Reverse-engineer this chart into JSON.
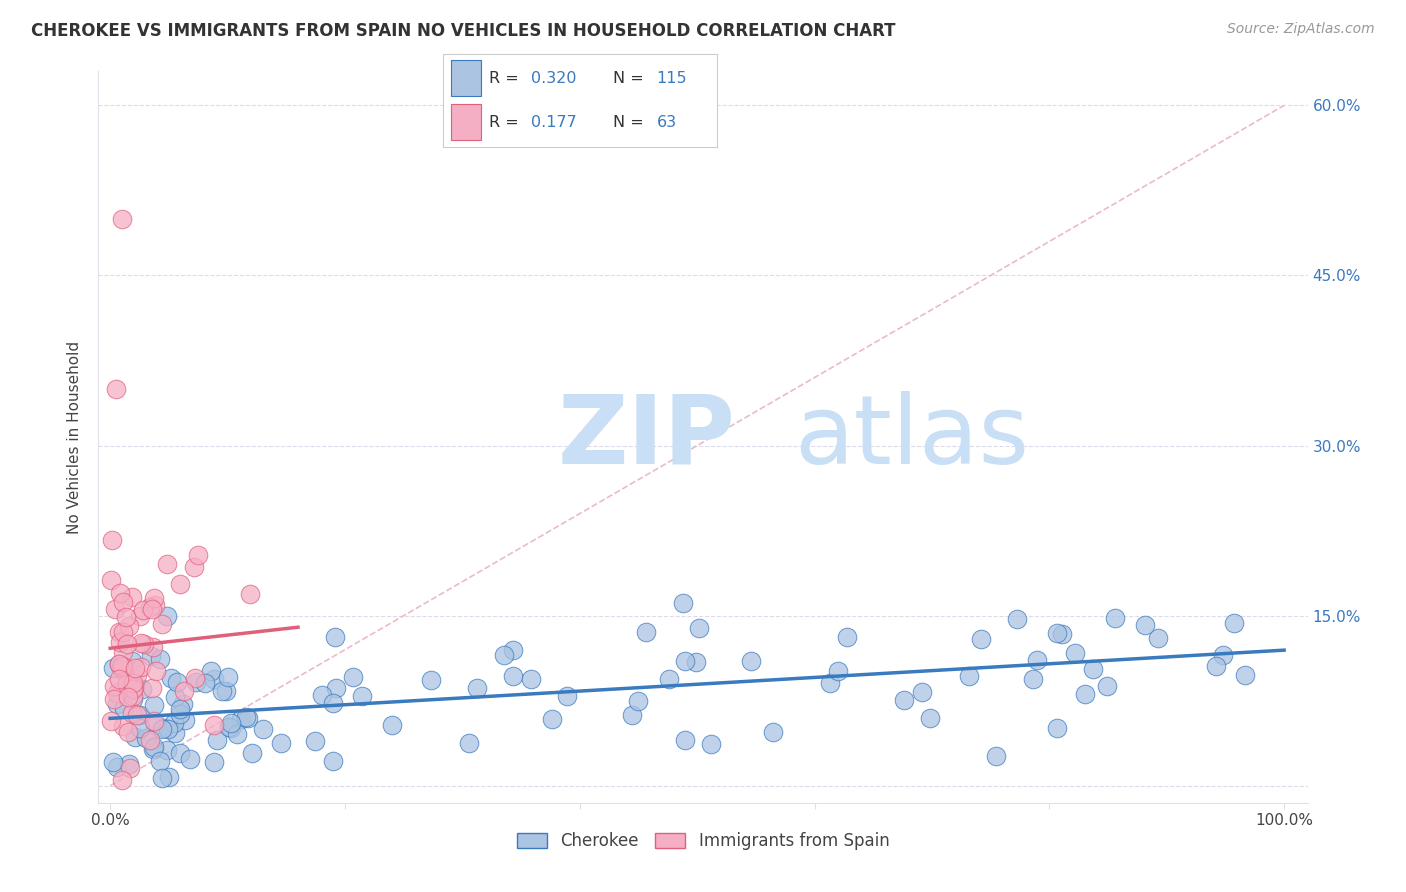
{
  "title": "CHEROKEE VS IMMIGRANTS FROM SPAIN NO VEHICLES IN HOUSEHOLD CORRELATION CHART",
  "source_text": "Source: ZipAtlas.com",
  "ylabel": "No Vehicles in Household",
  "r_cherokee": 0.32,
  "n_cherokee": 115,
  "r_spain": 0.177,
  "n_spain": 63,
  "xlim": [
    -1.0,
    102.0
  ],
  "ylim": [
    -1.5,
    63.0
  ],
  "x_ticks": [
    0.0,
    20.0,
    40.0,
    60.0,
    80.0,
    100.0
  ],
  "y_ticks": [
    0.0,
    15.0,
    30.0,
    45.0,
    60.0
  ],
  "y_tick_labels_right": [
    "",
    "15.0%",
    "30.0%",
    "45.0%",
    "60.0%"
  ],
  "x_tick_labels": [
    "0.0%",
    "",
    "",
    "",
    "",
    "100.0%"
  ],
  "color_cherokee": "#aac4e2",
  "color_spain": "#f5afc5",
  "line_color_cherokee": "#3a7abf",
  "line_color_spain": "#e0607a",
  "ref_line_color": "#e8b4c0",
  "watermark_zip_color": "#cce0f0",
  "watermark_atlas_color": "#c8dff0",
  "background_color": "#ffffff",
  "grid_color": "#d8d8e8",
  "tick_color": "#3a7abf",
  "spine_color": "#e0e0e8"
}
